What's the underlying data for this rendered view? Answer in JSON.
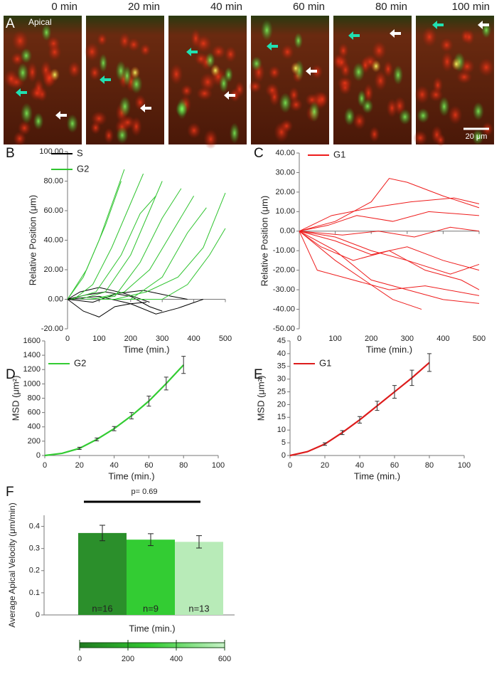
{
  "image_panel": {
    "panel_label": "A",
    "region": "Apical",
    "times": [
      "0 min",
      "20 min",
      "40 min",
      "60 min",
      "80 min",
      "100 min"
    ],
    "scale_bar": "20 μm"
  },
  "chart_data": [
    {
      "type": "line",
      "panel_label": "B",
      "x_label": "Time (min.)",
      "y_label": "Relative Position (μm)",
      "legend": "upper left",
      "xlim": [
        0,
        500
      ],
      "xticks": [
        0,
        100,
        200,
        300,
        400,
        500
      ],
      "ylim": [
        -20,
        100
      ],
      "yticks": [
        {
          "value": -20,
          "label": "-20.00"
        },
        {
          "value": 0,
          "label": "0.00"
        },
        {
          "value": 20,
          "label": "20.00"
        },
        {
          "value": 40,
          "label": "40.00"
        },
        {
          "value": 60,
          "label": "60.00"
        },
        {
          "value": 80,
          "label": "80.00"
        },
        {
          "value": 100,
          "label": "100.00"
        }
      ],
      "series": [
        {
          "name": "S",
          "color": "#000000",
          "tracks": [
            {
              "x": [
                0,
                50,
                100,
                150,
                200,
                250
              ],
              "values": [
                0,
                -8,
                -12,
                -5,
                -3,
                -2
              ]
            },
            {
              "x": [
                0,
                60,
                120,
                200,
                260,
                300
              ],
              "values": [
                0,
                3,
                5,
                2,
                -5,
                -8
              ]
            },
            {
              "x": [
                0,
                80,
                160,
                240,
                330,
                380
              ],
              "values": [
                0,
                -2,
                4,
                6,
                2,
                0
              ]
            },
            {
              "x": [
                0,
                100,
                200,
                280,
                350,
                430
              ],
              "values": [
                0,
                2,
                -3,
                -10,
                -6,
                0
              ]
            },
            {
              "x": [
                0,
                40,
                100,
                180,
                260
              ],
              "values": [
                0,
                5,
                8,
                4,
                -2
              ]
            }
          ]
        },
        {
          "name": "G2",
          "color": "#2fc42f",
          "tracks": [
            {
              "x": [
                0,
                50,
                100,
                150,
                180
              ],
              "values": [
                0,
                15,
                40,
                70,
                88
              ]
            },
            {
              "x": [
                20,
                80,
                140,
                200,
                240
              ],
              "values": [
                0,
                10,
                35,
                65,
                85
              ]
            },
            {
              "x": [
                40,
                120,
                200,
                260,
                300
              ],
              "values": [
                0,
                5,
                30,
                60,
                80
              ]
            },
            {
              "x": [
                60,
                150,
                230,
                300,
                360
              ],
              "values": [
                0,
                2,
                25,
                55,
                75
              ]
            },
            {
              "x": [
                80,
                180,
                260,
                330,
                400
              ],
              "values": [
                0,
                5,
                20,
                45,
                70
              ]
            },
            {
              "x": [
                100,
                200,
                300,
                380,
                440
              ],
              "values": [
                0,
                0,
                15,
                45,
                62
              ]
            },
            {
              "x": [
                150,
                250,
                350,
                430,
                500
              ],
              "values": [
                0,
                5,
                15,
                35,
                72
              ]
            },
            {
              "x": [
                200,
                300,
                380,
                450,
                500
              ],
              "values": [
                0,
                0,
                10,
                30,
                48
              ]
            },
            {
              "x": [
                0,
                60,
                120,
                170
              ],
              "values": [
                0,
                20,
                50,
                80
              ]
            },
            {
              "x": [
                10,
                90,
                170,
                230,
                280
              ],
              "values": [
                0,
                5,
                30,
                58,
                70
              ]
            }
          ]
        }
      ]
    },
    {
      "type": "line",
      "panel_label": "C",
      "x_label": "Time (min.)",
      "y_label": "Relative Position (μm)",
      "legend": "upper left",
      "xlim": [
        0,
        500
      ],
      "xticks": [
        0,
        100,
        200,
        300,
        400,
        500
      ],
      "ylim": [
        -50,
        40
      ],
      "yticks": [
        {
          "value": -50,
          "label": "-50.00"
        },
        {
          "value": -40,
          "label": "-40.00"
        },
        {
          "value": -30,
          "label": "-30.00"
        },
        {
          "value": -20,
          "label": "-20.00"
        },
        {
          "value": -10,
          "label": "-10.00"
        },
        {
          "value": 0,
          "label": "0.00"
        },
        {
          "value": 10,
          "label": "10.00"
        },
        {
          "value": 20,
          "label": "20.00"
        },
        {
          "value": 30,
          "label": "30.00"
        },
        {
          "value": 40,
          "label": "40.00"
        }
      ],
      "series": [
        {
          "name": "G1",
          "color": "#ee1c1c",
          "tracks": [
            {
              "x": [
                0,
                100,
                200,
                250,
                300,
                400,
                500
              ],
              "values": [
                0,
                5,
                15,
                27,
                25,
                18,
                12
              ]
            },
            {
              "x": [
                0,
                100,
                200,
                300,
                400,
                500
              ],
              "values": [
                0,
                -10,
                -25,
                -30,
                -35,
                -37
              ]
            },
            {
              "x": [
                0,
                100,
                200,
                300,
                400,
                500
              ],
              "values": [
                0,
                -5,
                -12,
                -8,
                -15,
                -20
              ]
            },
            {
              "x": [
                0,
                80,
                160,
                260,
                360,
                500
              ],
              "values": [
                0,
                3,
                8,
                5,
                10,
                8
              ]
            },
            {
              "x": [
                0,
                100,
                180,
                260,
                340
              ],
              "values": [
                0,
                -15,
                -25,
                -35,
                -40
              ]
            },
            {
              "x": [
                0,
                120,
                220,
                320,
                420,
                500
              ],
              "values": [
                0,
                -2,
                0,
                -3,
                2,
                0
              ]
            },
            {
              "x": [
                0,
                90,
                200,
                310,
                430,
                500
              ],
              "values": [
                0,
                8,
                12,
                15,
                17,
                14
              ]
            },
            {
              "x": [
                0,
                60,
                150,
                250,
                350,
                450,
                500
              ],
              "values": [
                0,
                -8,
                -15,
                -10,
                -20,
                -25,
                -30
              ]
            },
            {
              "x": [
                0,
                100,
                200,
                300,
                420,
                500
              ],
              "values": [
                0,
                -3,
                -10,
                -15,
                -22,
                -17
              ]
            },
            {
              "x": [
                0,
                50,
                150,
                250,
                350,
                500
              ],
              "values": [
                0,
                -20,
                -25,
                -30,
                -28,
                -33
              ]
            }
          ]
        }
      ]
    },
    {
      "type": "msd",
      "panel_label": "D",
      "x_label": "Time (min.)",
      "y_label": "MSD (μm²)",
      "legend": "top",
      "xlim": [
        0,
        100
      ],
      "xticks": [
        0,
        20,
        40,
        60,
        80,
        100
      ],
      "ylim": [
        0,
        1600
      ],
      "yticks": [
        0,
        200,
        400,
        600,
        800,
        1000,
        1200,
        1400,
        1600
      ],
      "series": [
        {
          "name": "G2",
          "color": "#33cc33",
          "x": [
            0,
            10,
            20,
            30,
            40,
            50,
            60,
            70,
            80
          ],
          "values": [
            0,
            30,
            100,
            225,
            375,
            555,
            760,
            1005,
            1265
          ],
          "errors": [
            null,
            null,
            15,
            20,
            30,
            45,
            70,
            90,
            120
          ]
        }
      ]
    },
    {
      "type": "msd",
      "panel_label": "E",
      "x_label": "Time (min.)",
      "y_label": "MSD (μm²)",
      "legend": "top",
      "xlim": [
        0,
        100
      ],
      "xticks": [
        0,
        20,
        40,
        60,
        80,
        100
      ],
      "ylim": [
        0,
        45
      ],
      "yticks": [
        0,
        5,
        10,
        15,
        20,
        25,
        30,
        35,
        40,
        45
      ],
      "series": [
        {
          "name": "G1",
          "color": "#dd1c1c",
          "x": [
            0,
            10,
            20,
            30,
            40,
            50,
            60,
            70,
            80
          ],
          "values": [
            0,
            1.5,
            4.5,
            9,
            14,
            19.5,
            25,
            30.5,
            36.5
          ],
          "errors": [
            null,
            null,
            0.5,
            0.8,
            1.3,
            1.8,
            2.5,
            3,
            3.5
          ]
        }
      ]
    },
    {
      "type": "bar",
      "panel_label": "F",
      "x_label": "Time (min.)",
      "y_label": "Average Apical Velocity (μm/min)",
      "annotation": "p= 0.69",
      "categories": [
        null,
        null,
        null
      ],
      "values": [
        0.37,
        0.34,
        0.33
      ],
      "errors": [
        0.035,
        0.027,
        0.028
      ],
      "bar_labels": [
        "n=16",
        "n=9",
        "n=13"
      ],
      "colors": [
        "#2b8f2b",
        "#33cc33",
        "#b8ebb8"
      ],
      "ylim": [
        0,
        0.45
      ],
      "yticks": [
        0,
        0.1,
        0.2,
        0.3,
        0.4
      ],
      "xlim": [
        0,
        600
      ],
      "xticks": [
        0,
        200,
        400,
        600
      ]
    }
  ]
}
